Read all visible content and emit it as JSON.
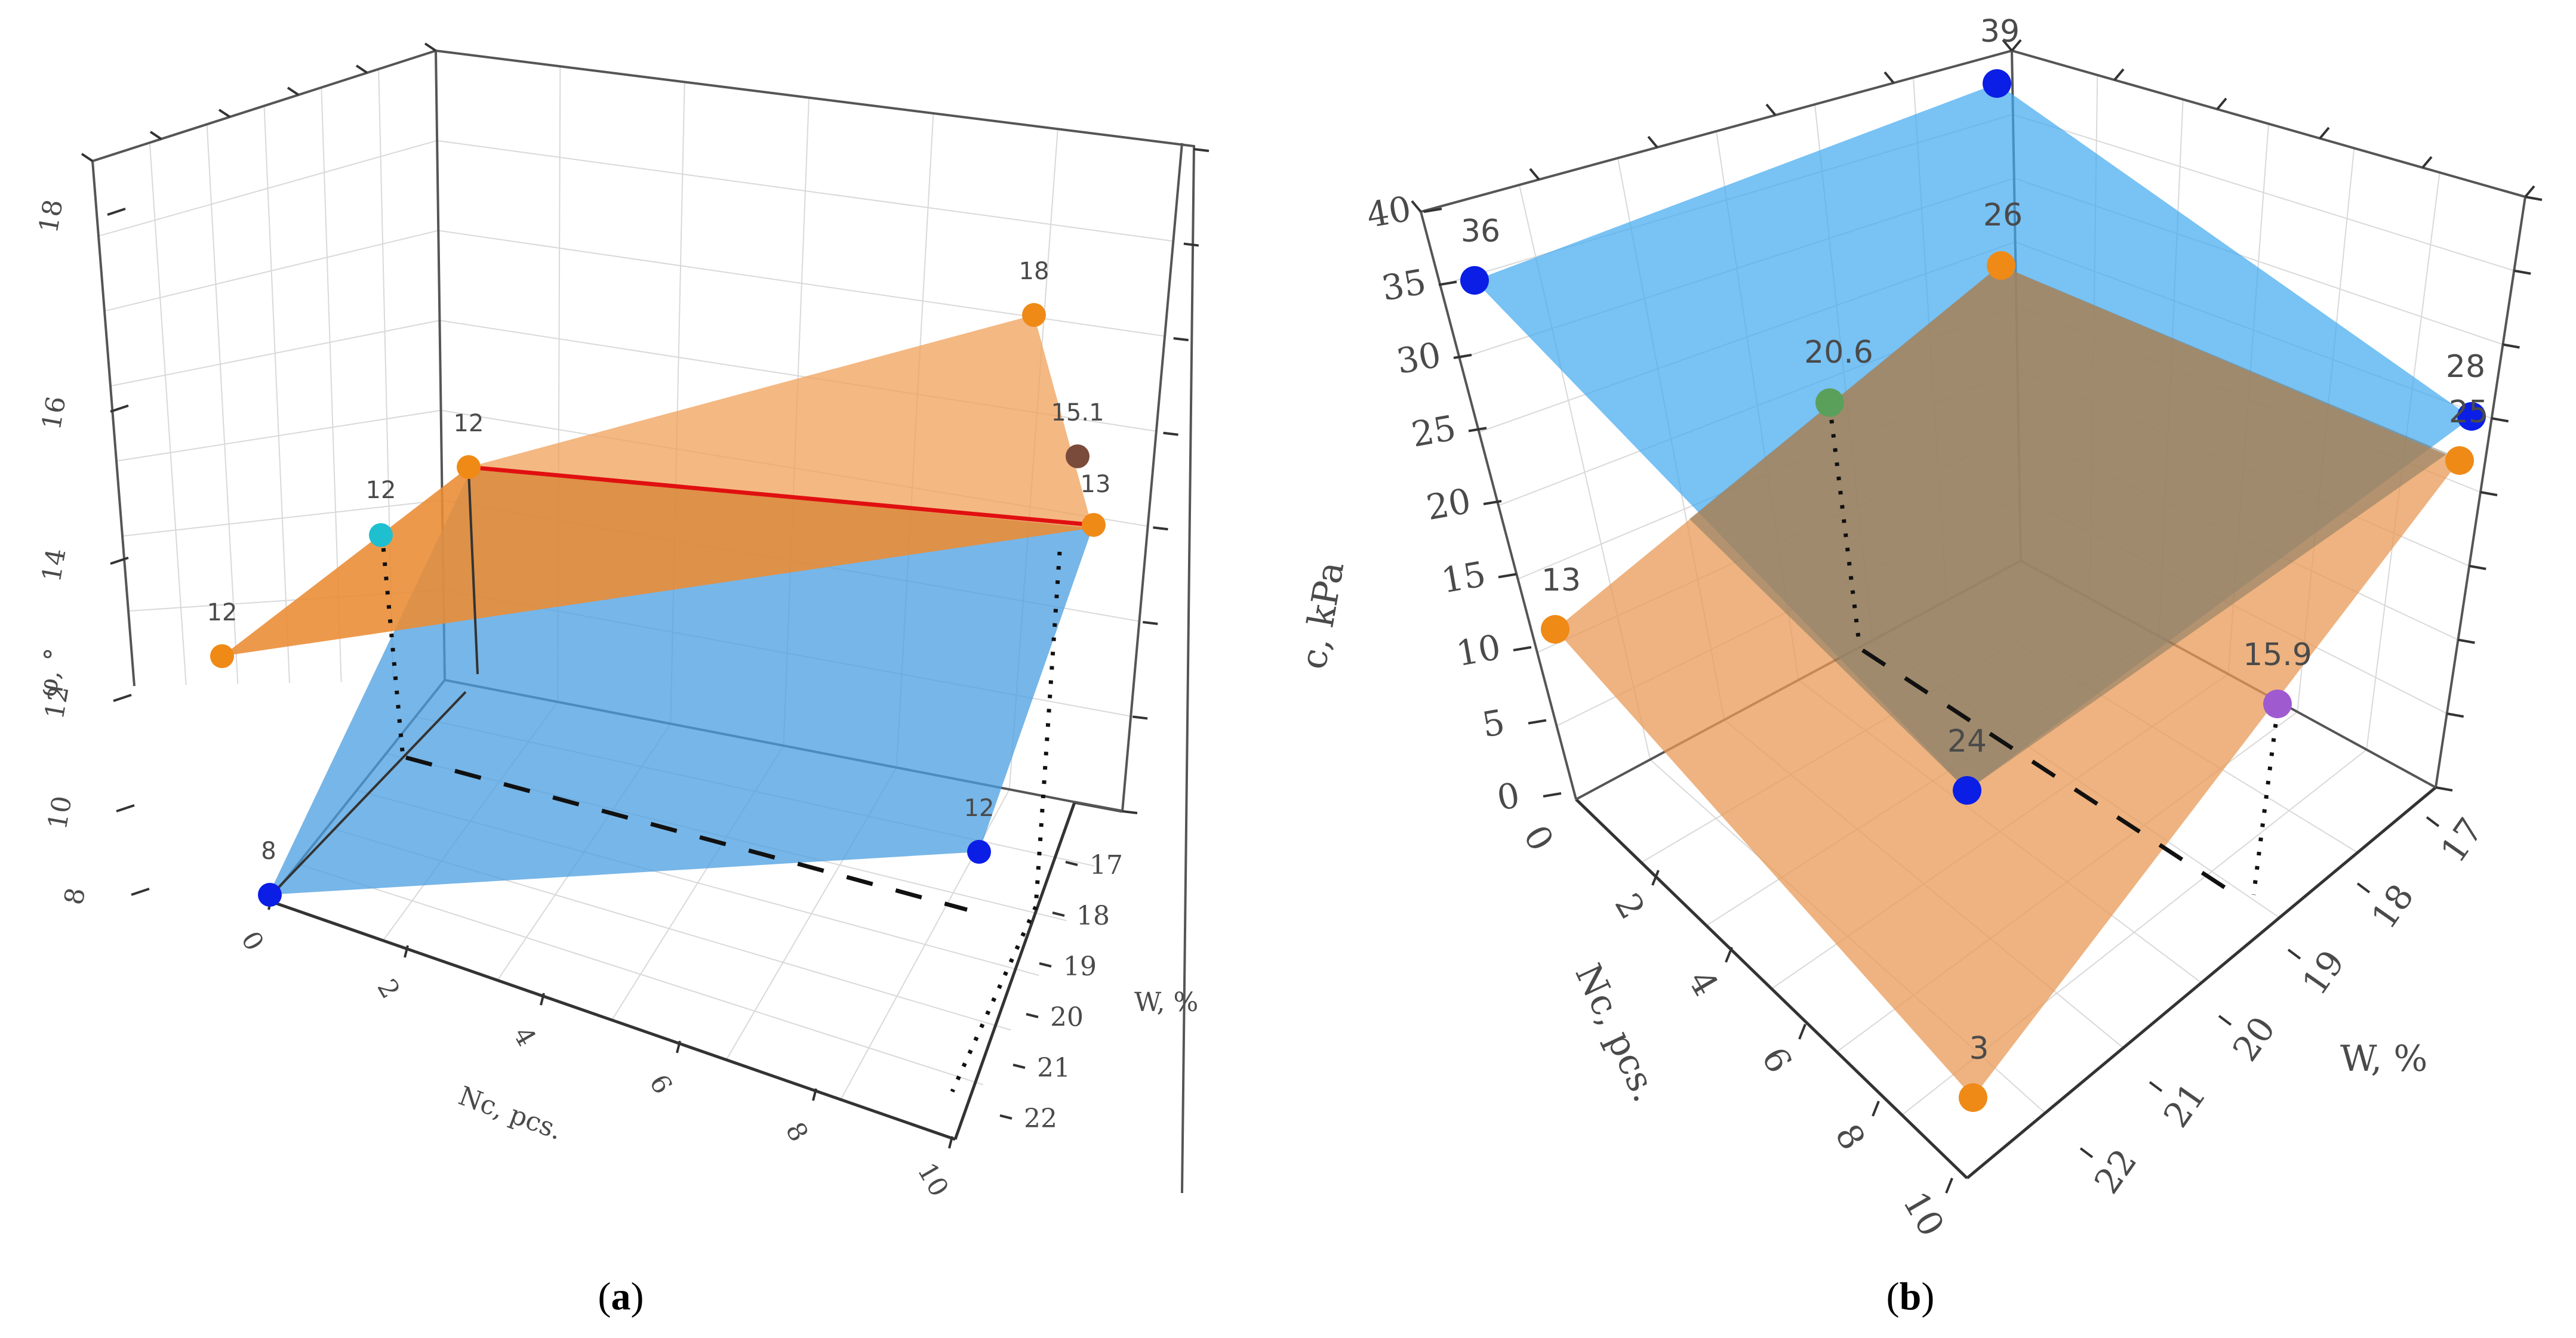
{
  "chart_data": [
    {
      "panel": "(a)",
      "panel_letter": "a",
      "type": "surface3d",
      "xlabel": "Nc, pcs.",
      "ylabel": "W, %",
      "zlabel": "φ, °",
      "x_ticks": [
        "0",
        "2",
        "4",
        "6",
        "8",
        "10"
      ],
      "y_ticks": [
        "17",
        "18",
        "19",
        "20",
        "21",
        "22"
      ],
      "z_ticks": [
        "8",
        "10",
        "12",
        "14",
        "16",
        "18"
      ],
      "planes": [
        {
          "color": "#f0a05a",
          "opacity": 0.8
        },
        {
          "color": "#4a9de0",
          "opacity": 0.75
        }
      ],
      "points": [
        {
          "label": "8",
          "color": "#0a1ee6"
        },
        {
          "label": "12",
          "color": "#0a1ee6"
        },
        {
          "label": "12",
          "color": "#ef8a17"
        },
        {
          "label": "12",
          "color": "#ef8a17"
        },
        {
          "label": "12",
          "color": "#1ec0d0"
        },
        {
          "label": "18",
          "color": "#ef8a17"
        },
        {
          "label": "15.1",
          "color": "#7a4a3a"
        },
        {
          "label": "13",
          "color": "#ef8a17"
        }
      ]
    },
    {
      "panel": "(b)",
      "panel_letter": "b",
      "type": "surface3d",
      "xlabel": "Nc, pcs.",
      "ylabel": "W, %",
      "zlabel": "c, kPa",
      "x_ticks": [
        "0",
        "2",
        "4",
        "6",
        "8",
        "10"
      ],
      "y_ticks": [
        "17",
        "18",
        "19",
        "20",
        "21",
        "22"
      ],
      "z_ticks": [
        "0",
        "5",
        "10",
        "15",
        "20",
        "25",
        "30",
        "35",
        "40"
      ],
      "planes": [
        {
          "color": "#3fa8f0",
          "opacity": 0.7
        },
        {
          "color": "#e89a55",
          "opacity": 0.75
        }
      ],
      "points": [
        {
          "label": "39",
          "color": "#0a1ee6"
        },
        {
          "label": "36",
          "color": "#0a1ee6"
        },
        {
          "label": "28",
          "color": "#0a1ee6"
        },
        {
          "label": "24",
          "color": "#0a1ee6"
        },
        {
          "label": "26",
          "color": "#ef8a17"
        },
        {
          "label": "13",
          "color": "#ef8a17"
        },
        {
          "label": "25",
          "color": "#ef8a17"
        },
        {
          "label": "3",
          "color": "#ef8a17"
        },
        {
          "label": "20.6",
          "color": "#5aa05a"
        },
        {
          "label": "15.9",
          "color": "#a05ad0"
        }
      ]
    }
  ]
}
